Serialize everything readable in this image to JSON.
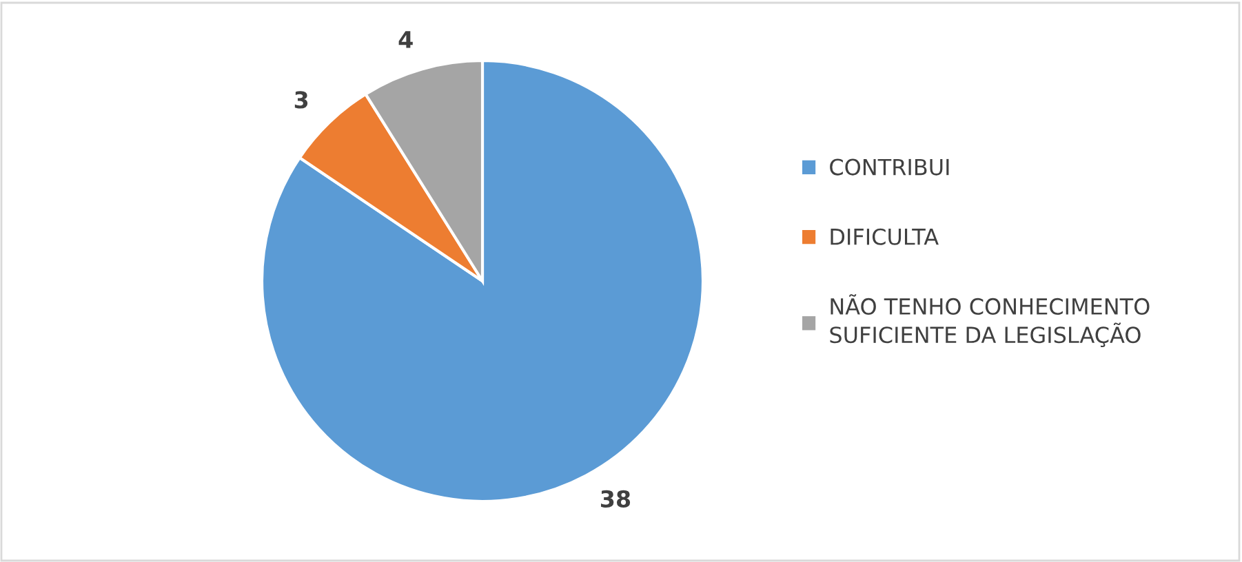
{
  "chart_data": {
    "type": "pie",
    "categories": [
      "CONTRIBUI",
      "DIFICULTA",
      "NÃO TENHO CONHECIMENTO\nSUFICIENTE DA LEGISLAÇÃO"
    ],
    "values": [
      38,
      3,
      4
    ],
    "colors": [
      "#5b9bd5",
      "#ed7d31",
      "#a5a5a5"
    ],
    "data_labels": true,
    "legend": "right"
  }
}
